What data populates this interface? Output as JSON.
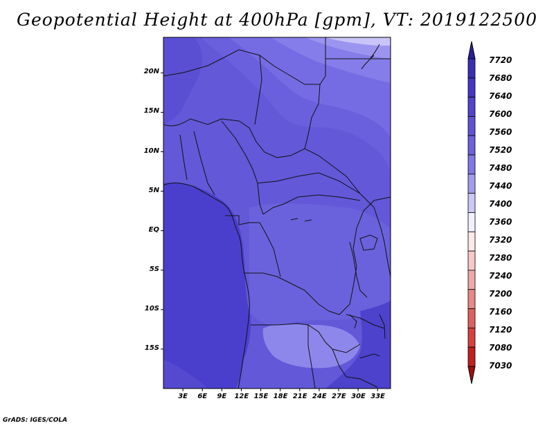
{
  "title": "Geopotential Height at 400hPa [gpm], VT: 2019122500",
  "credit": "GrADS: IGES/COLA",
  "map": {
    "lat_labels": [
      "20N",
      "15N",
      "10N",
      "5N",
      "EQ",
      "5S",
      "10S",
      "15S"
    ],
    "lat_values": [
      20,
      15,
      10,
      5,
      0,
      -5,
      -10,
      -15
    ],
    "lon_labels": [
      "3E",
      "6E",
      "9E",
      "12E",
      "15E",
      "18E",
      "21E",
      "24E",
      "27E",
      "30E",
      "33E"
    ],
    "lon_values": [
      3,
      6,
      9,
      12,
      15,
      18,
      21,
      24,
      27,
      30,
      33
    ],
    "lon_range": [
      0,
      35
    ],
    "lat_range": [
      -20,
      24.5
    ]
  },
  "colorbar": {
    "labels": [
      "7720",
      "7680",
      "7640",
      "7600",
      "7560",
      "7520",
      "7480",
      "7440",
      "7400",
      "7360",
      "7320",
      "7280",
      "7240",
      "7200",
      "7160",
      "7120",
      "7080",
      "7030"
    ],
    "colors": [
      "#2a1f9e",
      "#3a2fb4",
      "#4536c6",
      "#5244cc",
      "#5f53d4",
      "#6d62dc",
      "#7f77e6",
      "#a29cf0",
      "#cbc8f8",
      "#f2f0ff",
      "#ffe8e8",
      "#f8c8c8",
      "#f0a8a8",
      "#e88888",
      "#e06060",
      "#d84040",
      "#c02020",
      "#a00e0e"
    ]
  }
}
